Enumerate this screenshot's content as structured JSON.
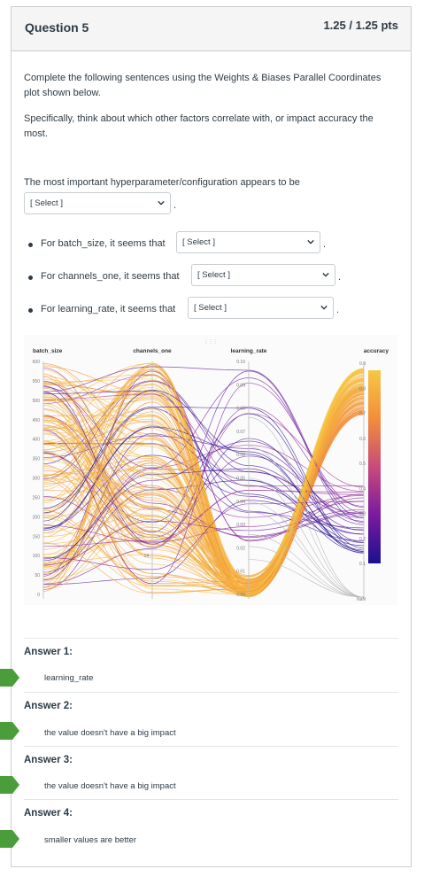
{
  "question": {
    "title": "Question 5",
    "points": "1.25 / 1.25 pts",
    "intro": "Complete the following sentences using the Weights & Biases Parallel Coordinates plot shown below.",
    "instruction": "Specifically, think about which other factors correlate with, or impact accuracy the most.",
    "prompt": "The most important hyperparameter/configuration appears to be",
    "select_placeholder": "[ Select ]",
    "bullets": [
      {
        "text": "For batch_size, it seems that"
      },
      {
        "text": "For channels_one, it seems that"
      },
      {
        "text": "For learning_rate, it seems that"
      }
    ],
    "period": "."
  },
  "chart_data": {
    "type": "parallel-coordinates",
    "axes": [
      {
        "name": "batch_size",
        "ticks": [
          "600",
          "550",
          "500",
          "450",
          "400",
          "350",
          "300",
          "250",
          "200",
          "150",
          "100",
          "50",
          "0"
        ]
      },
      {
        "name": "channels_one",
        "ticks": [
          "",
          "",
          "",
          "",
          "",
          "",
          "",
          "",
          "",
          "",
          "14",
          "",
          ""
        ]
      },
      {
        "name": "learning_rate",
        "ticks": [
          "0.10",
          "0.09",
          "0.08",
          "0.07",
          "0.06",
          "0.05",
          "0.04",
          "0.03",
          "0.02",
          "0.01",
          "0.00"
        ]
      },
      {
        "name": "accuracy",
        "ticks": [
          "0.9",
          "0.8",
          "0.7",
          "0.6",
          "0.5",
          "0.4",
          "0.3",
          "0.2",
          "0.1",
          "NaN"
        ]
      }
    ],
    "colors": {
      "high": "#f6c744",
      "low": "#1c1091"
    }
  },
  "answers": [
    {
      "label": "Answer 1:",
      "value": "learning_rate"
    },
    {
      "label": "Answer 2:",
      "value": "the value doesn't have a big impact"
    },
    {
      "label": "Answer 3:",
      "value": "the value doesn't have a big impact"
    },
    {
      "label": "Answer 4:",
      "value": "smaller values are better"
    }
  ],
  "colors": {
    "correct_marker": "#4b9c3a",
    "border": "#c7cdd1"
  }
}
